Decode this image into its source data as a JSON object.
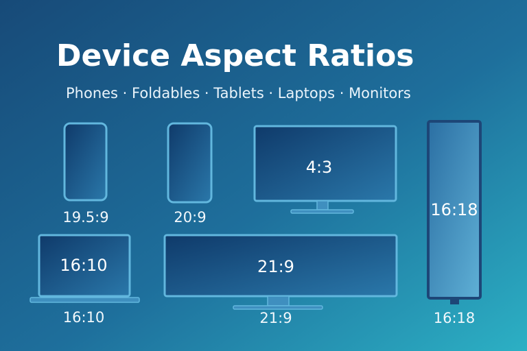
{
  "header": {
    "title": "Device Aspect Ratios",
    "subtitle": "Phones · Foldables · Tablets · Laptops · Monitors"
  },
  "devices": [
    {
      "label": "19.5:9"
    },
    {
      "label": "20:9"
    },
    {
      "inner_label": "4:3"
    },
    {
      "inner_label": "16:18",
      "label": "16:18"
    },
    {
      "inner_label": "16:10",
      "label": "16:10"
    },
    {
      "inner_label": "21:9",
      "label": "21:9"
    }
  ]
}
